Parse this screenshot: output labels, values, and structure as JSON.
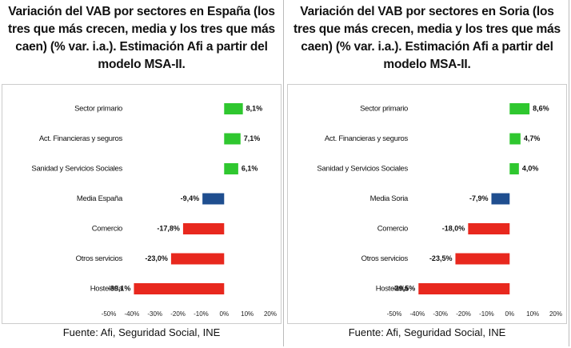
{
  "chart_data": [
    {
      "type": "bar",
      "orientation": "horizontal",
      "title": "Variación del VAB por sectores en España (los tres que más crecen, media y los tres que más caen) (% var. i.a.). Estimación Afi a partir del modelo MSA-II.",
      "categories": [
        "Sector primario",
        "Act. Financieras y seguros",
        "Sanidad y Servicios Sociales",
        "Media España",
        "Comercio",
        "Otros servicios",
        "Hostelería"
      ],
      "values": [
        8.1,
        7.1,
        6.1,
        -9.4,
        -17.8,
        -23.0,
        -39.1
      ],
      "value_labels": [
        "8,1%",
        "7,1%",
        "6,1%",
        "-9,4%",
        "-17,8%",
        "-23,0%",
        "-39,1%"
      ],
      "colors": [
        "#2fc72f",
        "#2fc72f",
        "#2fc72f",
        "#1f4e8f",
        "#e8281e",
        "#e8281e",
        "#e8281e"
      ],
      "xlim": [
        -50,
        20
      ],
      "xticks": [
        {
          "value": -50,
          "label": "-50%"
        },
        {
          "value": -40,
          "label": "-40%"
        },
        {
          "value": -30,
          "label": "-30%"
        },
        {
          "value": -20,
          "label": "-20%"
        },
        {
          "value": -10,
          "label": "-10%"
        },
        {
          "value": 0,
          "label": "0%"
        },
        {
          "value": 10,
          "label": "10%"
        },
        {
          "value": 20,
          "label": "20%"
        }
      ],
      "source": "Fuente: Afi, Seguridad Social, INE"
    },
    {
      "type": "bar",
      "orientation": "horizontal",
      "title": "Variación del VAB por sectores en Soria (los tres que más crecen, media y los tres que más caen) (% var. i.a.). Estimación Afi a partir del modelo MSA-II.",
      "categories": [
        "Sector primario",
        "Act. Financieras y seguros",
        "Sanidad y Servicios Sociales",
        "Media Soria",
        "Comercio",
        "Otros servicios",
        "Hostelería"
      ],
      "values": [
        8.6,
        4.7,
        4.0,
        -7.9,
        -18.0,
        -23.5,
        -39.5
      ],
      "value_labels": [
        "8,6%",
        "4,7%",
        "4,0%",
        "-7,9%",
        "-18,0%",
        "-23,5%",
        "-39,5%"
      ],
      "colors": [
        "#2fc72f",
        "#2fc72f",
        "#2fc72f",
        "#1f4e8f",
        "#e8281e",
        "#e8281e",
        "#e8281e"
      ],
      "xlim": [
        -50,
        20
      ],
      "xticks": [
        {
          "value": -50,
          "label": "-50%"
        },
        {
          "value": -40,
          "label": "-40%"
        },
        {
          "value": -30,
          "label": "-30%"
        },
        {
          "value": -20,
          "label": "-20%"
        },
        {
          "value": -10,
          "label": "-10%"
        },
        {
          "value": 0,
          "label": "0%"
        },
        {
          "value": 10,
          "label": "10%"
        },
        {
          "value": 20,
          "label": "20%"
        }
      ],
      "source": "Fuente: Afi, Seguridad Social, INE"
    }
  ]
}
